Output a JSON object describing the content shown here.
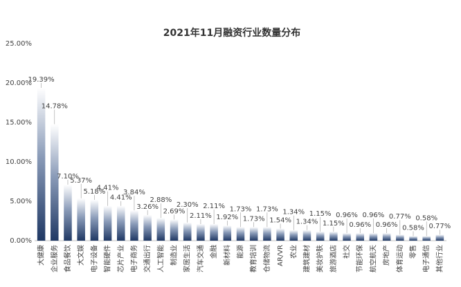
{
  "chart_data": {
    "type": "bar",
    "title": "2021年11月融资行业数量分布",
    "categories": [
      "大健康",
      "企业服务",
      "食品餐饮",
      "大文娱",
      "电子设备",
      "智能硬件",
      "芯片产业",
      "电子商务",
      "交通出行",
      "人工智能",
      "制造业",
      "家居生活",
      "汽车交通",
      "金融",
      "新材料",
      "能源",
      "教育培训",
      "仓储物流",
      "AR/VR",
      "农业",
      "建筑建材",
      "美妆护肤",
      "旅游酒店",
      "社交",
      "节能环保",
      "航空航天",
      "房地产",
      "体育运动",
      "零售",
      "电子通信",
      "其他行业"
    ],
    "values": [
      19.39,
      14.78,
      7.1,
      5.37,
      5.18,
      4.41,
      4.41,
      3.84,
      3.26,
      2.88,
      2.69,
      2.3,
      2.11,
      2.11,
      1.92,
      1.73,
      1.73,
      1.73,
      1.54,
      1.34,
      1.34,
      1.15,
      1.15,
      0.96,
      0.96,
      0.96,
      0.96,
      0.77,
      0.58,
      0.58,
      0.77
    ],
    "value_labels": [
      "19.39%",
      "14.78%",
      "7.10%",
      "5.37%",
      "5.18%",
      "4.41%",
      "4.41%",
      "3.84%",
      "3.26%",
      "2.88%",
      "2.69%",
      "2.30%",
      "2.11%",
      "2.11%",
      "1.92%",
      "1.73%",
      "1.73%",
      "1.73%",
      "1.54%",
      "1.34%",
      "1.34%",
      "1.15%",
      "1.15%",
      "0.96%",
      "0.96%",
      "0.96%",
      "0.96%",
      "0.77%",
      "0.58%",
      "0.58%",
      "0.77%"
    ],
    "color": "#1f3864",
    "ylim": [
      0,
      25
    ],
    "yticks": [
      {
        "value": 0,
        "label": "0.00%"
      },
      {
        "value": 5,
        "label": "5.00%"
      },
      {
        "value": 10,
        "label": "10.00%"
      },
      {
        "value": 15,
        "label": "15.00%"
      },
      {
        "value": 20,
        "label": "20.00%"
      },
      {
        "value": 25,
        "label": "25.00%"
      }
    ],
    "grid": false
  }
}
